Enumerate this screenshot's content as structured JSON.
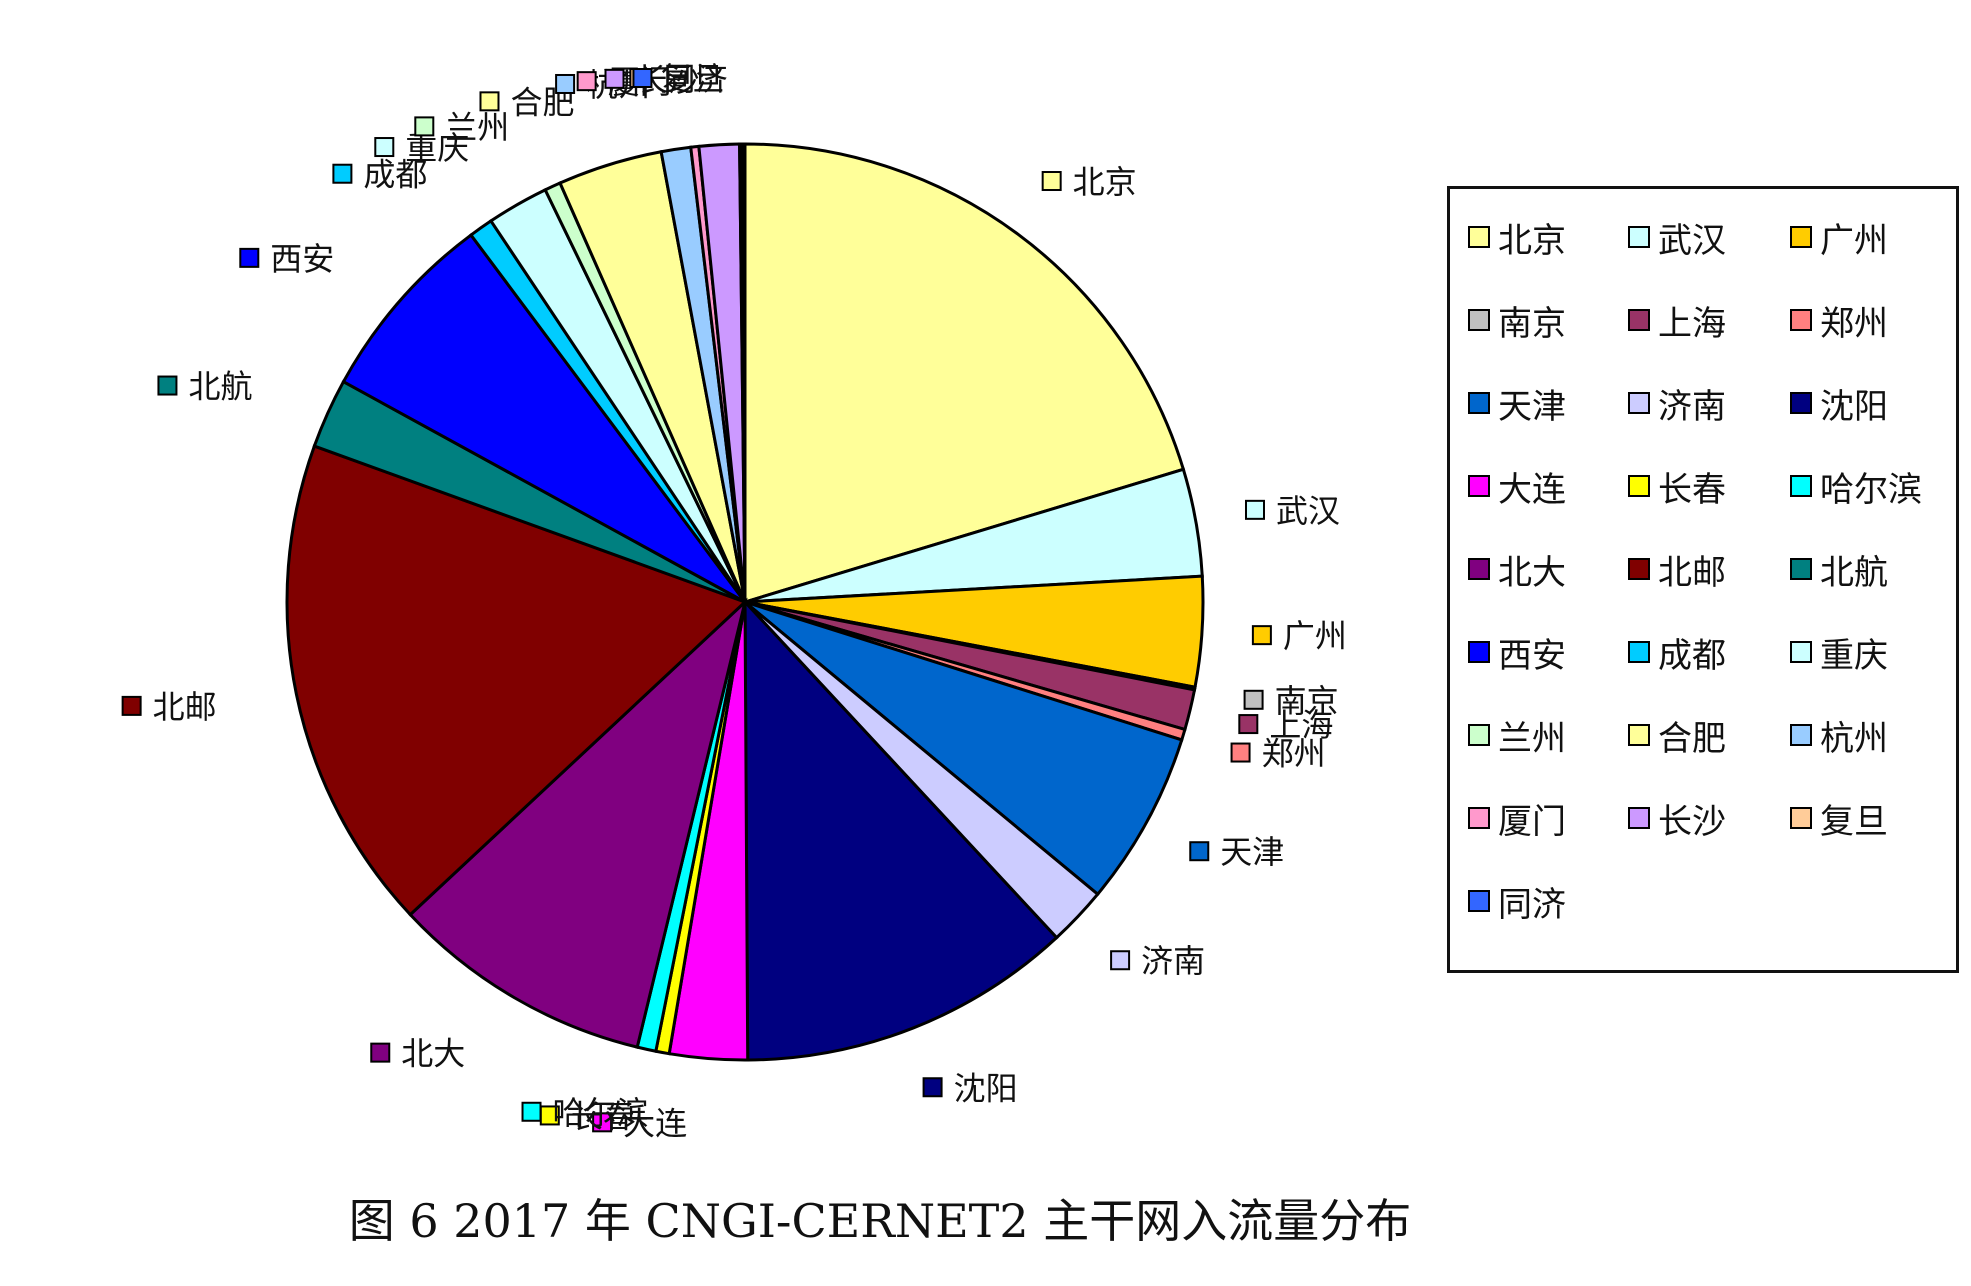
{
  "chart_data": {
    "type": "pie",
    "categories": [
      "北京",
      "武汉",
      "广州",
      "南京",
      "上海",
      "郑州",
      "天津",
      "济南",
      "沈阳",
      "大连",
      "长春",
      "哈尔滨",
      "北大",
      "北邮",
      "北航",
      "西安",
      "成都",
      "重庆",
      "兰州",
      "合肥",
      "杭州",
      "厦门",
      "长沙",
      "复旦",
      "同济"
    ],
    "values": [
      21.5,
      4.0,
      4.1,
      0.1,
      1.5,
      0.4,
      6.5,
      2.2,
      12.5,
      2.9,
      0.5,
      0.7,
      9.8,
      18.5,
      2.6,
      7.2,
      0.9,
      2.3,
      0.6,
      3.9,
      1.1,
      0.3,
      1.5,
      0.1,
      0.1
    ],
    "colors": [
      "#FFFF99",
      "#CCFFFF",
      "#FFCC00",
      "#C0C0C0",
      "#993366",
      "#FF8080",
      "#0066CC",
      "#CCCCFF",
      "#000080",
      "#FF00FF",
      "#FFFF00",
      "#00FFFF",
      "#800080",
      "#800000",
      "#008080",
      "#0000FF",
      "#00CCFF",
      "#CCFFFF",
      "#CCFFCC",
      "#FFFF99",
      "#99CCFF",
      "#FF99CC",
      "#CC99FF",
      "#FFCC99",
      "#3366FF"
    ],
    "legend_position": "right",
    "legend_order": [
      "北京",
      "武汉",
      "广州",
      "南京",
      "上海",
      "郑州",
      "天津",
      "济南",
      "沈阳",
      "大连",
      "长春",
      "哈尔滨",
      "北大",
      "北邮",
      "北航",
      "西安",
      "成都",
      "重庆",
      "兰州",
      "合肥",
      "杭州",
      "厦门",
      "长沙",
      "复旦",
      "同济"
    ]
  },
  "caption": "图 6 2017 年 CNGI-CERNET2 主干网入流量分布"
}
